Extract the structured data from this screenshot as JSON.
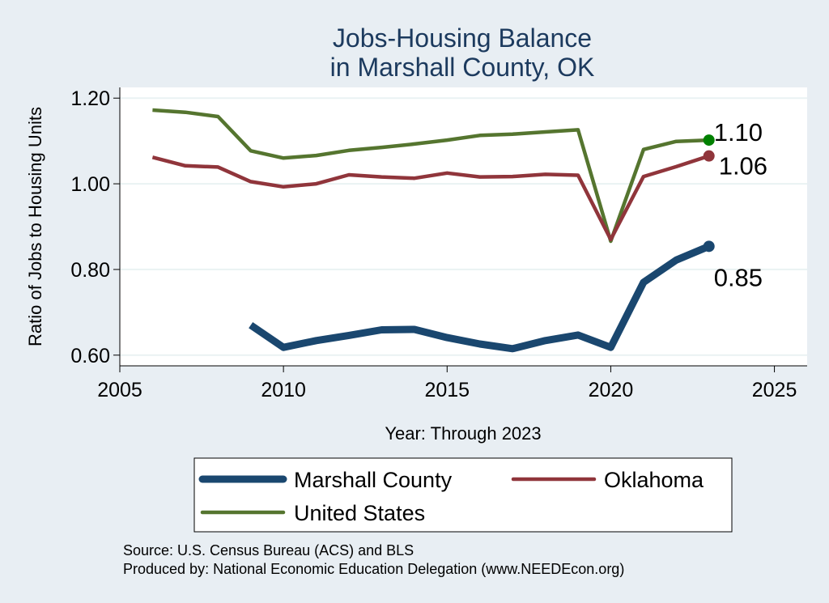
{
  "chart_data": {
    "type": "line",
    "title": [
      "Jobs-Housing Balance",
      "in Marshall County, OK"
    ],
    "xlabel": "Year: Through 2023",
    "ylabel": "Ratio of Jobs to Housing Units",
    "xlim": [
      2005,
      2026
    ],
    "ylim": [
      0.575,
      1.225
    ],
    "xticks": [
      2005,
      2010,
      2015,
      2020,
      2025
    ],
    "yticks": [
      0.6,
      0.8,
      1.0,
      1.2
    ],
    "ytick_labels": [
      "0.60",
      "0.80",
      "1.00",
      "1.20"
    ],
    "grid": true,
    "legend_position": "bottom",
    "series": [
      {
        "name": "Marshall County",
        "color": "#1a476f",
        "width": "thick",
        "x": [
          2009,
          2010,
          2011,
          2012,
          2013,
          2014,
          2015,
          2016,
          2017,
          2018,
          2019,
          2020,
          2021,
          2022,
          2023
        ],
        "values": [
          0.67,
          0.618,
          0.634,
          0.646,
          0.659,
          0.66,
          0.641,
          0.626,
          0.615,
          0.634,
          0.647,
          0.618,
          0.77,
          0.822,
          0.854
        ],
        "end_label": "0.85",
        "marker_color": "#1a476f"
      },
      {
        "name": "Oklahoma",
        "color": "#90353b",
        "width": "medium",
        "x": [
          2006,
          2007,
          2008,
          2009,
          2010,
          2011,
          2012,
          2013,
          2014,
          2015,
          2016,
          2017,
          2018,
          2019,
          2020,
          2021,
          2022,
          2023
        ],
        "values": [
          1.062,
          1.042,
          1.039,
          1.005,
          0.993,
          1.0,
          1.021,
          1.016,
          1.013,
          1.025,
          1.016,
          1.017,
          1.022,
          1.02,
          0.87,
          1.017,
          1.04,
          1.065
        ],
        "end_label": "1.06",
        "marker_color": "#90353b"
      },
      {
        "name": "United States",
        "color": "#55752f",
        "width": "medium",
        "x": [
          2006,
          2007,
          2008,
          2009,
          2010,
          2011,
          2012,
          2013,
          2014,
          2015,
          2016,
          2017,
          2018,
          2019,
          2020,
          2021,
          2022,
          2023
        ],
        "values": [
          1.172,
          1.167,
          1.157,
          1.077,
          1.06,
          1.066,
          1.078,
          1.085,
          1.093,
          1.102,
          1.113,
          1.116,
          1.121,
          1.126,
          0.866,
          1.08,
          1.099,
          1.102
        ],
        "end_label": "1.10",
        "marker_color": "#008000"
      }
    ],
    "notes": [
      "Source: U.S. Census Bureau (ACS) and BLS",
      "Produced by: National Economic Education Delegation (www.NEEDEcon.org)"
    ]
  }
}
